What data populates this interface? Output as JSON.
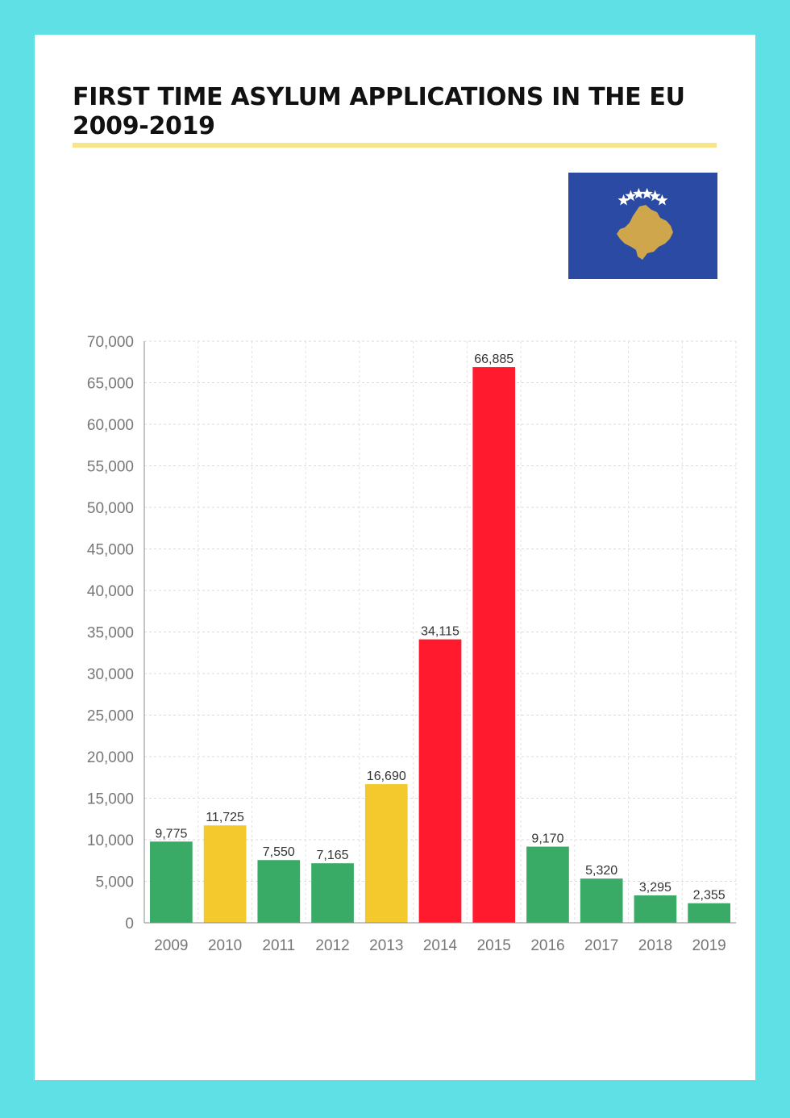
{
  "page": {
    "title_line1": "FIRST TIME ASYLUM APPLICATIONS IN THE EU",
    "title_line2": "2009-2019",
    "background_color": "#5ee0e4",
    "rule_color": "#f7e58a"
  },
  "flag": {
    "icon": "kosovo-flag",
    "field_color": "#2a4aa3",
    "map_color": "#d0a64c",
    "star_color": "#ffffff",
    "star_count": 6
  },
  "chart_data": {
    "type": "bar",
    "title": "",
    "xlabel": "",
    "ylabel": "",
    "categories": [
      "2009",
      "2010",
      "2011",
      "2012",
      "2013",
      "2014",
      "2015",
      "2016",
      "2017",
      "2018",
      "2019"
    ],
    "values": [
      9775,
      11725,
      7550,
      7165,
      16690,
      34115,
      66885,
      9170,
      5320,
      3295,
      2355
    ],
    "value_labels": [
      "9,775",
      "11,725",
      "7,550",
      "7,165",
      "16,690",
      "34,115",
      "66,885",
      "9,170",
      "5,320",
      "3,295",
      "2,355"
    ],
    "colors": [
      "#3aaa67",
      "#f4c92e",
      "#3aaa67",
      "#3aaa67",
      "#f4c92e",
      "#ff1a2e",
      "#ff1a2e",
      "#3aaa67",
      "#3aaa67",
      "#3aaa67",
      "#3aaa67"
    ],
    "ylim": [
      0,
      70000
    ],
    "yticks": [
      0,
      5000,
      10000,
      15000,
      20000,
      25000,
      30000,
      35000,
      40000,
      45000,
      50000,
      55000,
      60000,
      65000,
      70000
    ],
    "ytick_labels": [
      "0",
      "5,000",
      "10,000",
      "15,000",
      "20,000",
      "25,000",
      "30,000",
      "35,000",
      "40,000",
      "45,000",
      "50,000",
      "55,000",
      "60,000",
      "65,000",
      "70,000"
    ],
    "grid": true,
    "legend": "none"
  }
}
